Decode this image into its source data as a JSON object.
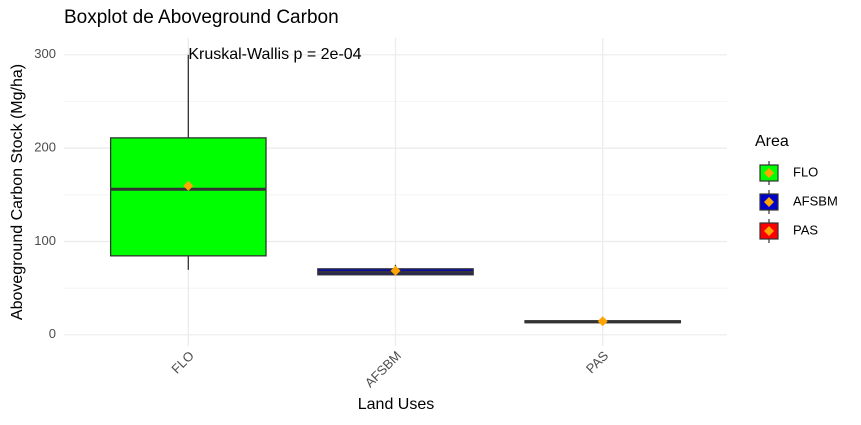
{
  "chart_data": {
    "type": "box",
    "title": "Boxplot de Aboveground Carbon",
    "x_label": "Land Uses",
    "y_label": "Aboveground Carbon Stock (Mg/ha)",
    "annotation": "Kruskal-Wallis p = 2e-04",
    "legend_title": "Area",
    "legend_position": "right",
    "categories": [
      "FLO",
      "AFSBM",
      "PAS"
    ],
    "colors": [
      "#00ff00",
      "#0000cd",
      "#ff0000"
    ],
    "mean_color": "#ffa500",
    "boxes": [
      {
        "min": 69.6,
        "q1": 84.6,
        "median": 156,
        "q3": 211,
        "max": 300,
        "mean": 159.6
      },
      {
        "min": 64,
        "q1": 64.3,
        "median": 67,
        "q3": 70.7,
        "max": 75,
        "mean": 68.6
      },
      {
        "min": 12,
        "q1": 13,
        "median": 14,
        "q3": 15,
        "max": 16,
        "mean": 14.5
      }
    ],
    "ylim": [
      -12,
      318
    ],
    "yticks": [
      0,
      100,
      200,
      300
    ],
    "y_minor_ticks": [
      50,
      150,
      250
    ],
    "grid": true
  }
}
